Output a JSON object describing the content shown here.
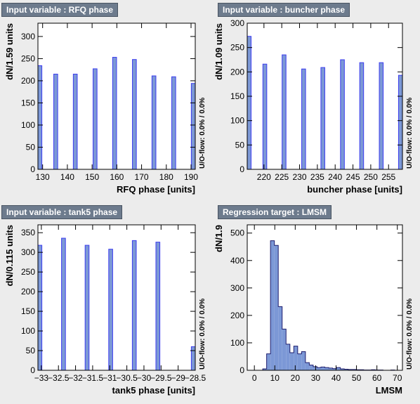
{
  "chart_data": [
    {
      "type": "bar",
      "title": "Input variable : RFQ phase",
      "xlabel": "RFQ phase  [units]",
      "ylabel": "dN/1.59 units",
      "side_label": "U/O-flow: 0.0% / 0.0%",
      "xlim": [
        128.1,
        191.7
      ],
      "ylim": [
        0,
        330
      ],
      "xticks": [
        130,
        140,
        150,
        160,
        170,
        180,
        190
      ],
      "yticks": [
        0,
        50,
        100,
        150,
        200,
        250,
        300
      ],
      "bin_width": 1.59,
      "bins_x": [
        128.1,
        134.5,
        142.4,
        150.4,
        158.3,
        166.3,
        174.2,
        182.2,
        190.1
      ],
      "values": [
        234,
        215,
        215,
        227,
        253,
        248,
        211,
        209,
        194
      ],
      "fill": "#3c3cf0",
      "fill_style": "outline"
    },
    {
      "type": "bar",
      "title": "Input variable : buncher phase",
      "xlabel": "buncher phase  [units]",
      "ylabel": "dN/1.09 units",
      "side_label": "U/O-flow: 0.0% / 0.0%",
      "xlim": [
        215.3,
        258.9
      ],
      "ylim": [
        0,
        300
      ],
      "xticks": [
        220,
        225,
        230,
        235,
        240,
        245,
        250,
        255
      ],
      "yticks": [
        0,
        50,
        100,
        150,
        200,
        250,
        300
      ],
      "bin_width": 1.09,
      "bins_x": [
        215.3,
        219.7,
        225.1,
        230.6,
        236.0,
        241.5,
        246.9,
        252.4,
        257.8
      ],
      "values": [
        273,
        216,
        235,
        206,
        209,
        225,
        219,
        219,
        193
      ],
      "fill": "#3c3cf0",
      "fill_style": "outline"
    },
    {
      "type": "bar",
      "title": "Input variable : tank5 phase",
      "xlabel": "tank5 phase  [units]",
      "ylabel": "dN/0.115 units",
      "side_label": "U/O-flow: 0.0% / 0.0%",
      "xlim": [
        -33.1,
        -28.5
      ],
      "ylim": [
        0,
        370
      ],
      "xticks": [
        -33,
        -32.5,
        -32,
        -31.5,
        -31,
        -30.5,
        -30,
        -29.5,
        -29,
        -28.5
      ],
      "xtick_labels": [
        "−33",
        "−32.5",
        "−32",
        "−31.5",
        "−31",
        "−30.5",
        "−30",
        "−29.5",
        "−29",
        "−28.5"
      ],
      "yticks": [
        0,
        50,
        100,
        150,
        200,
        250,
        300,
        350
      ],
      "bin_width": 0.115,
      "bins_x": [
        -33.1,
        -32.41,
        -31.72,
        -31.03,
        -30.34,
        -29.65,
        -28.615
      ],
      "values": [
        318,
        336,
        318,
        308,
        330,
        326,
        60
      ],
      "fill": "#3c3cf0",
      "fill_style": "outline"
    },
    {
      "type": "bar",
      "title": "Regression target : LMSM",
      "xlabel": "LMSM",
      "ylabel": "dN/1.9",
      "side_label": "U/O-flow: 0.0% / 0.0%",
      "xlim": [
        -3.5,
        72.5
      ],
      "ylim": [
        0,
        530
      ],
      "xticks": [
        0,
        10,
        20,
        30,
        40,
        50,
        60,
        70
      ],
      "yticks": [
        0,
        100,
        200,
        300,
        400,
        500
      ],
      "bin_width": 1.9,
      "bins_start": -3.5,
      "values": [
        0,
        0,
        0,
        0,
        5,
        60,
        472,
        455,
        232,
        150,
        95,
        64,
        88,
        60,
        68,
        28,
        19,
        13,
        10,
        12,
        10,
        8,
        6,
        10,
        5,
        4,
        3,
        3,
        2,
        2,
        1,
        1,
        2,
        1,
        1,
        0,
        0,
        1,
        0,
        0
      ],
      "fill": "#7c98d6",
      "fill_style": "solid"
    }
  ]
}
